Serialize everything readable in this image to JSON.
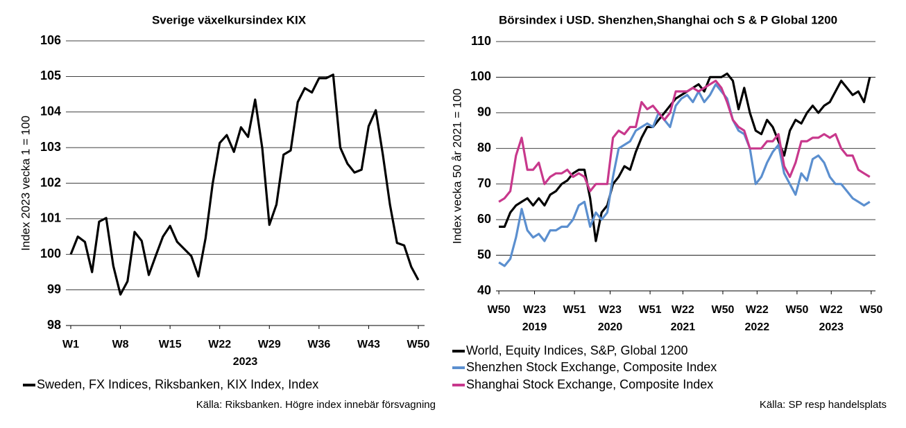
{
  "chart_data": [
    {
      "type": "line",
      "title": "Sverige växelkursindex KIX",
      "ylabel": "Index 2023 vecka 1 = 100",
      "xlabel": "2023",
      "categories": [
        "W1",
        null,
        null,
        null,
        null,
        null,
        null,
        "W8",
        null,
        null,
        null,
        null,
        null,
        null,
        "W15",
        null,
        null,
        null,
        null,
        null,
        null,
        "W22",
        null,
        null,
        null,
        null,
        null,
        null,
        "W29",
        null,
        null,
        null,
        null,
        null,
        null,
        "W36",
        null,
        null,
        null,
        null,
        null,
        null,
        "W43",
        null,
        null,
        null,
        null,
        null,
        null,
        "W50"
      ],
      "series": [
        {
          "name": "Sweden, FX Indices, Riksbanken, KIX Index, Index",
          "color": "#000000",
          "values": [
            100.0,
            100.5,
            100.35,
            99.5,
            100.92,
            101.02,
            99.68,
            98.87,
            99.24,
            100.63,
            100.38,
            99.42,
            99.97,
            100.5,
            100.8,
            100.35,
            100.15,
            99.95,
            99.38,
            100.45,
            101.98,
            103.13,
            103.35,
            102.88,
            103.57,
            103.3,
            104.35,
            102.98,
            100.83,
            101.4,
            102.8,
            102.92,
            104.28,
            104.67,
            104.55,
            104.95,
            104.95,
            105.05,
            103.0,
            102.55,
            102.3,
            102.38,
            103.6,
            104.05,
            102.8,
            101.4,
            100.32,
            100.25,
            99.65,
            99.28
          ]
        }
      ],
      "ylim": [
        98,
        106
      ],
      "yticks": [
        98,
        99,
        100,
        101,
        102,
        103,
        104,
        105,
        106
      ],
      "grid": true,
      "source": "Källa: Riksbanken. Högre index innebär försvagning"
    },
    {
      "type": "line",
      "title": "Börsindex i USD. Shenzhen,Shanghai och S & P Global 1200",
      "ylabel": "Index vecka 50 år 2021 = 100",
      "x": [
        0,
        4,
        8,
        12,
        16,
        20,
        24,
        28,
        32,
        36,
        40,
        44,
        48,
        52,
        56,
        60,
        64,
        68,
        72,
        76,
        80,
        84,
        88,
        92,
        96,
        100,
        104,
        108,
        112,
        116,
        120,
        124,
        128,
        132,
        136,
        140,
        144,
        148,
        152,
        156,
        160,
        164,
        168,
        172,
        176,
        180,
        184,
        188,
        192,
        196,
        200,
        204,
        208,
        212,
        216,
        220,
        224,
        228,
        232,
        236,
        240,
        244,
        248,
        252,
        256,
        260
      ],
      "series": [
        {
          "name": "World, Equity Indices, S&P, Global 1200",
          "color": "#000000",
          "values": [
            58,
            58,
            62,
            64,
            65,
            66,
            64,
            66,
            64,
            67,
            68,
            70,
            71,
            73,
            74,
            74,
            66,
            54,
            62,
            64,
            70,
            72,
            75,
            74,
            79,
            83,
            86,
            86,
            88,
            90,
            92,
            94,
            95,
            96,
            97,
            98,
            96,
            100,
            100,
            100,
            101,
            99,
            91,
            97,
            90,
            85,
            84,
            88,
            86,
            82,
            78,
            85,
            88,
            87,
            90,
            92,
            90,
            92,
            93,
            96,
            99,
            97,
            95,
            96,
            93,
            100
          ]
        },
        {
          "name": "Shenzhen Stock Exchange, Composite Index",
          "color": "#5b8fcf",
          "values": [
            48,
            47,
            49,
            55,
            63,
            57,
            55,
            56,
            54,
            57,
            57,
            58,
            58,
            60,
            64,
            65,
            58,
            62,
            60,
            62,
            72,
            80,
            81,
            82,
            85,
            86,
            87,
            86,
            90,
            88,
            86,
            92,
            94,
            95,
            93,
            96,
            93,
            95,
            98,
            96,
            94,
            88,
            85,
            84,
            80,
            70,
            72,
            76,
            79,
            81,
            73,
            70,
            67,
            73,
            71,
            77,
            78,
            76,
            72,
            70,
            70,
            68,
            66,
            65,
            64,
            65
          ]
        },
        {
          "name": "Shanghai Stock Exchange, Composite Index",
          "color": "#c8388c",
          "values": [
            65,
            66,
            68,
            78,
            83,
            74,
            74,
            76,
            70,
            72,
            73,
            73,
            74,
            72,
            73,
            72,
            68,
            70,
            70,
            70,
            83,
            85,
            84,
            86,
            86,
            93,
            91,
            92,
            90,
            88,
            90,
            96,
            96,
            96,
            97,
            96,
            97,
            98,
            99,
            97,
            93,
            88,
            86,
            85,
            80,
            80,
            80,
            82,
            82,
            84,
            75,
            72,
            76,
            82,
            82,
            83,
            83,
            84,
            83,
            84,
            80,
            78,
            78,
            74,
            73,
            72
          ]
        }
      ],
      "xlim": [
        -2,
        264
      ],
      "xticks": [
        {
          "value": 0,
          "label": "W50"
        },
        {
          "value": 25,
          "label": "W23"
        },
        {
          "value": 53,
          "label": "W51"
        },
        {
          "value": 78,
          "label": "W23"
        },
        {
          "value": 106,
          "label": "W51"
        },
        {
          "value": 129,
          "label": "W22"
        },
        {
          "value": 157,
          "label": "W50"
        },
        {
          "value": 181,
          "label": "W22"
        },
        {
          "value": 209,
          "label": "W50"
        },
        {
          "value": 233,
          "label": "W22"
        },
        {
          "value": 261,
          "label": "W50"
        }
      ],
      "x_year_labels": [
        {
          "value": 25,
          "label": "2019"
        },
        {
          "value": 78,
          "label": "2020"
        },
        {
          "value": 129,
          "label": "2021"
        },
        {
          "value": 181,
          "label": "2022"
        },
        {
          "value": 233,
          "label": "2023"
        }
      ],
      "ylim": [
        40,
        110
      ],
      "yticks": [
        40,
        50,
        60,
        70,
        80,
        90,
        100,
        110
      ],
      "grid": true,
      "source": "Källa: SP resp handelsplats"
    }
  ]
}
